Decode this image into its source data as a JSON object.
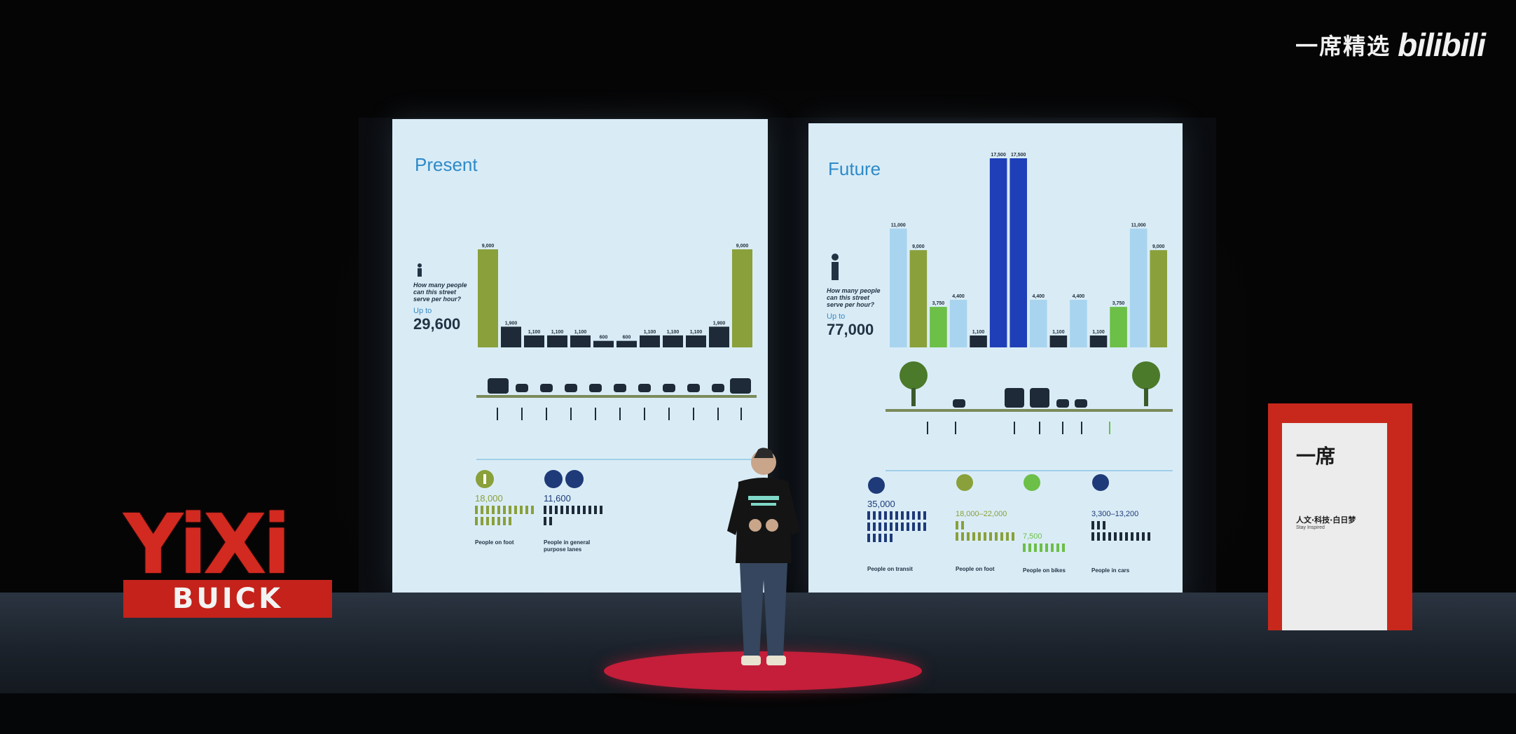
{
  "watermark": {
    "channel": "一席精选",
    "brand": "bilibili"
  },
  "slides": {
    "present": {
      "title": "Present",
      "question": "How many people can this street serve per hour?",
      "up_to": "Up to",
      "total": "29,600",
      "bar_values": [
        "9,000",
        "1,900",
        "1,100",
        "1,100",
        "1,100",
        "600",
        "600",
        "1,100",
        "1,100",
        "1,100",
        "1,900",
        "9,000"
      ],
      "stat_walk_num": "18,000",
      "stat_walk_label": "People on foot",
      "stat_cars_num": "11,600",
      "stat_cars_label": "People in general purpose lanes"
    },
    "future": {
      "title": "Future",
      "question": "How many people can this street serve per hour?",
      "up_to": "Up to",
      "total": "77,000",
      "bar_values": [
        "11,000",
        "9,000",
        "3,750",
        "4,400",
        "1,100",
        "17,500",
        "17,500",
        "4,400",
        "1,100",
        "4,400",
        "1,100",
        "3,750",
        "11,000",
        "9,000"
      ],
      "stat_transit_num": "35,000",
      "stat_transit_label": "People on transit",
      "stat_foot_num": "18,000–22,000",
      "stat_foot_label": "People on foot",
      "stat_bikes_num": "7,500",
      "stat_bikes_label": "People on bikes",
      "stat_cars_num": "3,300–13,200",
      "stat_cars_label": "People in cars"
    }
  },
  "stage": {
    "logo_top": "YiXi",
    "logo_bottom": "BUICK",
    "lectern_logo": "一席",
    "lectern_slogan": "人文·科技·白日梦",
    "lectern_slogan_en": "Stay Inspired"
  },
  "colors": {
    "slide_bg": "#d9ecf6",
    "olive": "#8aa03a",
    "green": "#6cbf47",
    "blue_dark": "#1f3fb8",
    "light_blue": "#a8d4ef",
    "navy": "#1e2a38",
    "yixi_red": "#d22a20"
  }
}
